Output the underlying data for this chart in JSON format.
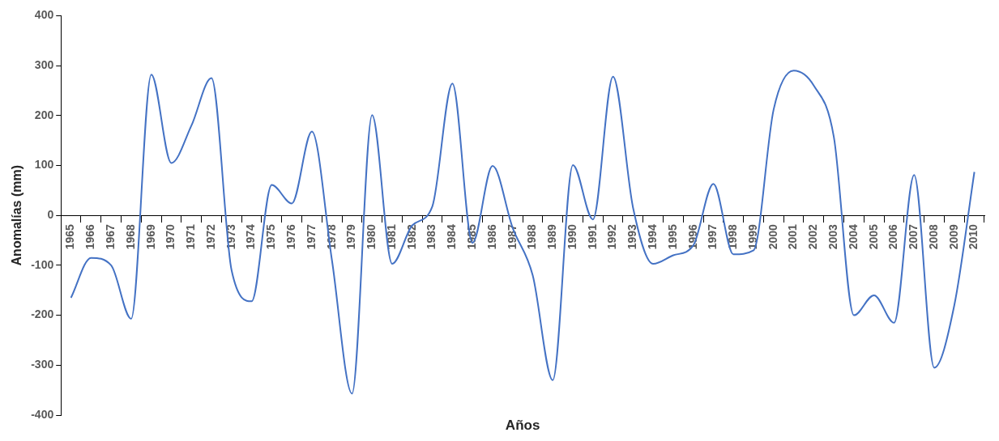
{
  "chart_data": {
    "type": "line",
    "xlabel": "Años",
    "ylabel": "Anomalías (mm)",
    "categories": [
      "1965",
      "1966",
      "1967",
      "1968",
      "1969",
      "1970",
      "1971",
      "1972",
      "1973",
      "1974",
      "1975",
      "1976",
      "1977",
      "1978",
      "1979",
      "1980",
      "1981",
      "1982",
      "1983",
      "1984",
      "1985",
      "1986",
      "1987",
      "1988",
      "1989",
      "1990",
      "1991",
      "1992",
      "1993",
      "1994",
      "1995",
      "1996",
      "1997",
      "1998",
      "1999",
      "2000",
      "2001",
      "2002",
      "2003",
      "2004",
      "2005",
      "2006",
      "2007",
      "2008",
      "2009",
      "2010"
    ],
    "series": [
      {
        "color": "#4472c4",
        "values": [
          -165,
          -85,
          -100,
          -207,
          282,
          105,
          180,
          275,
          -110,
          -172,
          61,
          24,
          168,
          -90,
          -357,
          201,
          -97,
          -20,
          18,
          264,
          -55,
          99,
          -25,
          -120,
          -330,
          101,
          -8,
          278,
          15,
          -97,
          -80,
          -60,
          63,
          -78,
          -70,
          212,
          290,
          260,
          157,
          -200,
          -160,
          -215,
          81,
          -305,
          -180,
          87
        ]
      }
    ],
    "ylim": [
      -400,
      400
    ],
    "yticks": [
      -400,
      -300,
      -200,
      -100,
      0,
      100,
      200,
      300,
      400
    ],
    "grid": false,
    "legend": false,
    "marker": "none",
    "line_style": "solid"
  }
}
